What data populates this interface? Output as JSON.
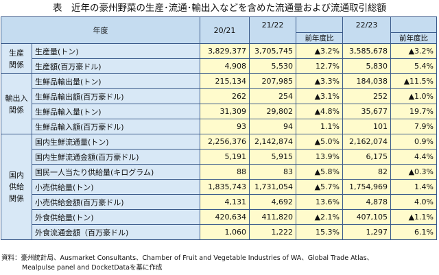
{
  "title": "表　近年の豪州野菜の生産･流通･輸出入などを含めた流通量および流通取引総額",
  "header": {
    "nendo": "年度",
    "y1": "20/21",
    "y2": "21/22",
    "y3": "22/23",
    "yoy1": "前年度比",
    "yoy2": "前年度比"
  },
  "categories": {
    "production": [
      "生産",
      "関係"
    ],
    "trade": [
      "輸出入",
      "関係"
    ],
    "domestic": [
      "国内",
      "供給",
      "関係"
    ]
  },
  "rows": [
    {
      "item": "生産量(トン)",
      "v1": "3,829,377",
      "v2": "3,705,745",
      "c1": "▲3.2%",
      "v3": "3,585,678",
      "c2": "▲3.2%"
    },
    {
      "item": "生産額(百万豪ドル)",
      "v1": "4,908",
      "v2": "5,530",
      "c1": "12.7%",
      "v3": "5,830",
      "c2": "5.4%"
    },
    {
      "item": "生鮮品輸出量(トン)",
      "v1": "215,134",
      "v2": "207,985",
      "c1": "▲3.3%",
      "v3": "184,038",
      "c2": "▲11.5%"
    },
    {
      "item": "生鮮品輸出額(百万豪ドル)",
      "v1": "262",
      "v2": "254",
      "c1": "▲3.1%",
      "v3": "252",
      "c2": "▲1.0%"
    },
    {
      "item": "生鮮品輸入量(トン)",
      "v1": "31,309",
      "v2": "29,802",
      "c1": "▲4.8%",
      "v3": "35,677",
      "c2": "19.7%"
    },
    {
      "item": "生鮮品輸入額(百万豪ドル)",
      "v1": "93",
      "v2": "94",
      "c1": "1.1%",
      "v3": "101",
      "c2": "7.9%"
    },
    {
      "item": "国内生鮮流通量(トン)",
      "v1": "2,256,376",
      "v2": "2,142,874",
      "c1": "▲5.0%",
      "v3": "2,162,074",
      "c2": "0.9%"
    },
    {
      "item": "国内生鮮流通金額(百万豪ドル)",
      "v1": "5,191",
      "v2": "5,915",
      "c1": "13.9%",
      "v3": "6,175",
      "c2": "4.4%"
    },
    {
      "item": "国民一人当たり供給量(キログラム)",
      "v1": "88",
      "v2": "83",
      "c1": "▲5.8%",
      "v3": "82",
      "c2": "▲0.3%"
    },
    {
      "item": "小売供給量(トン)",
      "v1": "1,835,743",
      "v2": "1,731,054",
      "c1": "▲5.7%",
      "v3": "1,754,969",
      "c2": "1.4%"
    },
    {
      "item": "小売供給金額(百万豪ドル)",
      "v1": "4,131",
      "v2": "4,692",
      "c1": "13.6%",
      "v3": "4,878",
      "c2": "4.0%"
    },
    {
      "item": "外食供給量(トン)",
      "v1": "420,634",
      "v2": "411,820",
      "c1": "▲2.1%",
      "v3": "407,105",
      "c2": "▲1.1%"
    },
    {
      "item": "外食流通金額（百万豪ドル)",
      "v1": "1,060",
      "v2": "1,222",
      "c1": "15.3%",
      "v3": "1,297",
      "c2": "6.1%"
    }
  ],
  "source": {
    "line1": "資料：豪州統計局、Ausmarket Consultants、Chamber of Fruit and Vegetable Industries of WA、Global Trade Atlas、",
    "line2": "Mealpulse panel and DocketDataを基に作成"
  }
}
